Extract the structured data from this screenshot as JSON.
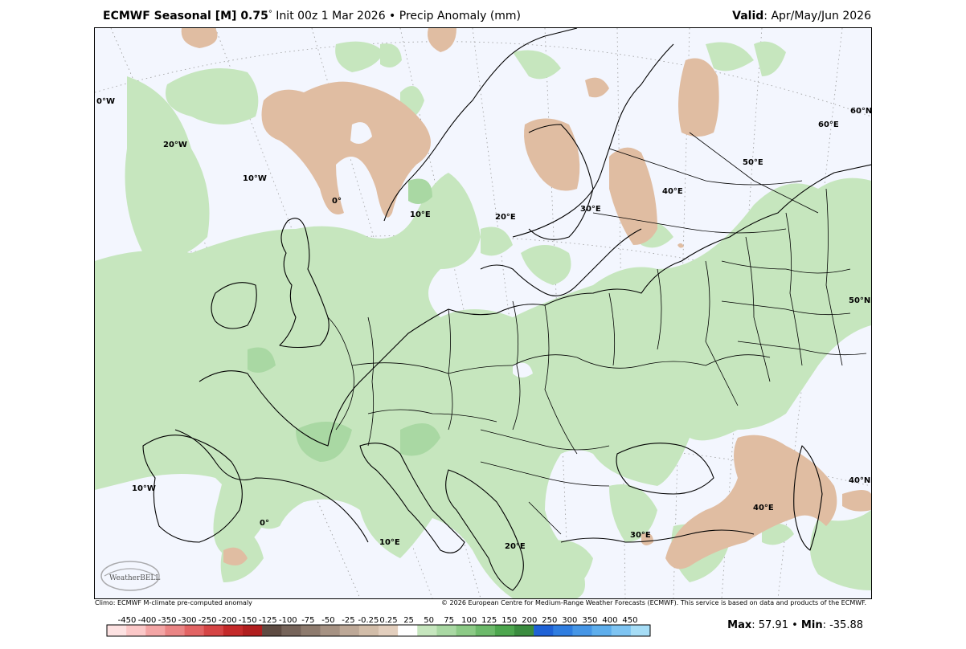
{
  "header": {
    "model": "ECMWF Seasonal [M] 0.75",
    "degree": "°",
    "init": " Init 00z 1 Mar 2026",
    "bullet": " • ",
    "field": "Precip Anomaly (mm)",
    "valid_label": "Valid",
    "valid_value": ": Apr/May/Jun 2026"
  },
  "map": {
    "ocean_color": "#f3f6fe",
    "positive_color": "#c6e6be",
    "positive_dark_color": "#a9d8a3",
    "negative_color": "#e0bda2",
    "labels": {
      "lon_30w": "0°W",
      "lon_20w": "20°W",
      "lon_10w": "10°W",
      "lon_0": "0°",
      "lon_10e": "10°E",
      "lon_20e": "20°E",
      "lon_30e": "30°E",
      "lon_40e": "40°E",
      "lon_50e": "50°E",
      "lon_60e": "60°E",
      "lat_60n": "60°N",
      "lat_50n": "50°N",
      "lat_40n": "40°N",
      "lon_10w_south": "10°W",
      "lon_0_south": "0°",
      "lon_10e_south": "10°E",
      "lon_20e_south": "20°E",
      "lon_30e_south": "30°E",
      "lon_40e_south": "40°E"
    },
    "logo_text": "WeatherBELL"
  },
  "footer": {
    "climo": "Climo: ECMWF M-climate pre-computed anomaly",
    "copyright": "© 2026 European Centre for Medium-Range Weather Forecasts (ECMWF). This service is based on data and products of the ECMWF."
  },
  "colorbar": {
    "ticks": [
      "-450",
      "-400",
      "-350",
      "-300",
      "-250",
      "-200",
      "-150",
      "-125",
      "-100",
      "-75",
      "-50",
      "-25",
      "-0.25",
      "0.25",
      "25",
      "50",
      "75",
      "100",
      "125",
      "150",
      "200",
      "250",
      "300",
      "350",
      "400",
      "450"
    ],
    "colors": [
      "#fde2e2",
      "#fbc8c8",
      "#f3a5a5",
      "#ea8585",
      "#e26464",
      "#d54545",
      "#c42a2a",
      "#b01e1e",
      "#5e4b42",
      "#76645a",
      "#8e7b6e",
      "#a69283",
      "#bda897",
      "#d2bda9",
      "#e3cfbe",
      "#ffffff",
      "#c6e6be",
      "#a9d8a3",
      "#8cca86",
      "#6cb96a",
      "#4da64e",
      "#3b8c3f",
      "#1f62d6",
      "#2f7de0",
      "#4696e6",
      "#5eaeec",
      "#7ec4f2",
      "#a6ddf6"
    ]
  },
  "stats": {
    "max_label": "Max",
    "max_value": ": 57.91",
    "sep": " • ",
    "min_label": "Min",
    "min_value": ": -35.88"
  }
}
